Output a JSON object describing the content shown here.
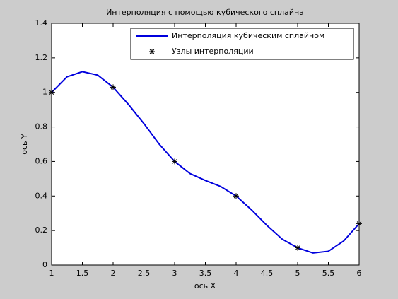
{
  "chart_data": {
    "type": "line",
    "title": "Интерполяция с помощью кубического сплайна",
    "xlabel": "ось X",
    "ylabel": "ось Y",
    "xlim": [
      1,
      6
    ],
    "ylim": [
      0,
      1.4
    ],
    "xticks": [
      1,
      1.5,
      2,
      2.5,
      3,
      3.5,
      4,
      4.5,
      5,
      5.5,
      6
    ],
    "yticks": [
      0,
      0.2,
      0.4,
      0.6,
      0.8,
      1,
      1.2,
      1.4
    ],
    "legend": "top-right",
    "series": [
      {
        "name": "Интерполяция кубическим сплайном",
        "color": "#0000dd",
        "style": "line",
        "x": [
          1,
          1.25,
          1.5,
          1.75,
          2,
          2.25,
          2.5,
          2.75,
          3,
          3.25,
          3.5,
          3.75,
          4,
          4.25,
          4.5,
          4.75,
          5,
          5.25,
          5.5,
          5.75,
          6
        ],
        "values": [
          1.0,
          1.09,
          1.12,
          1.1,
          1.03,
          0.93,
          0.82,
          0.7,
          0.6,
          0.53,
          0.49,
          0.455,
          0.4,
          0.32,
          0.23,
          0.15,
          0.1,
          0.07,
          0.08,
          0.14,
          0.24
        ]
      },
      {
        "name": "Узлы интерполяции",
        "color": "#000000",
        "style": "marker",
        "x": [
          1,
          2,
          3,
          4,
          5,
          6
        ],
        "values": [
          1.0,
          1.03,
          0.6,
          0.4,
          0.1,
          0.24
        ]
      }
    ]
  }
}
